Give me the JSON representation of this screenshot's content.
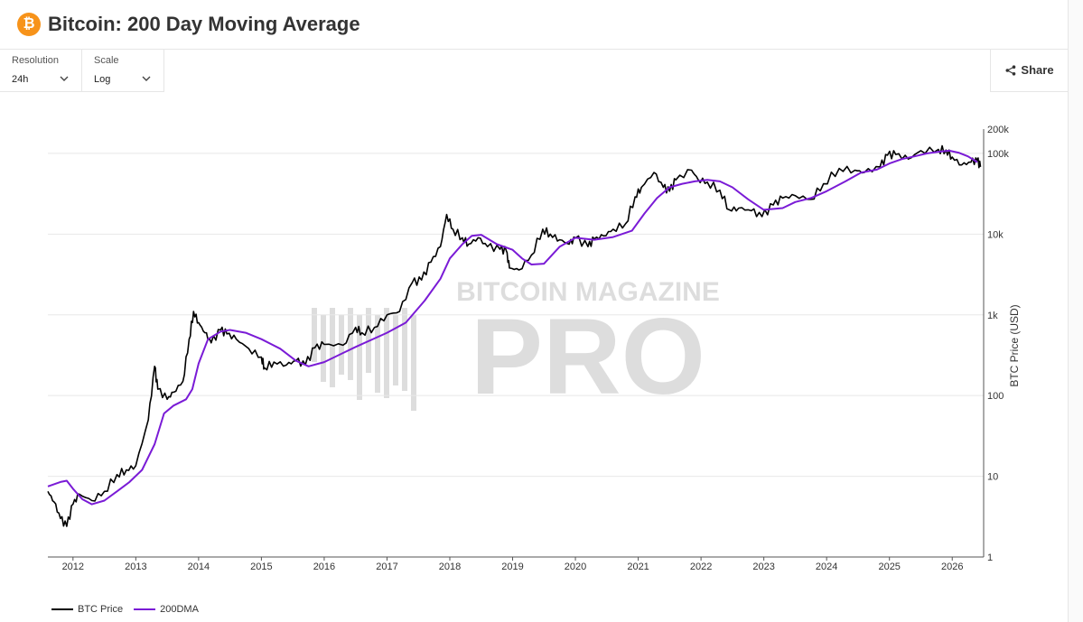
{
  "header": {
    "title": "Bitcoin: 200 Day Moving Average",
    "logo_glyph": "₿"
  },
  "controls": {
    "resolution": {
      "label": "Resolution",
      "value": "24h"
    },
    "scale": {
      "label": "Scale",
      "value": "Log"
    },
    "share_label": "Share"
  },
  "watermark": {
    "line1": "BITCOIN MAGAZINE",
    "line2": "PRO"
  },
  "colors": {
    "price": "#000000",
    "ma": "#7a1bd6",
    "brand": "#f7931a"
  },
  "chart_data": {
    "type": "line",
    "title": "",
    "xlabel": "",
    "ylabel": "BTC Price (USD)",
    "yscale": "log",
    "ylim": [
      1,
      200000
    ],
    "xlim": [
      2011.6,
      2026.5
    ],
    "y_ticks": [
      {
        "v": 1,
        "label": "1"
      },
      {
        "v": 10,
        "label": "10"
      },
      {
        "v": 100,
        "label": "100"
      },
      {
        "v": 1000,
        "label": "1k"
      },
      {
        "v": 10000,
        "label": "10k"
      },
      {
        "v": 100000,
        "label": "100k"
      },
      {
        "v": 200000,
        "label": "200k"
      }
    ],
    "x_ticks": [
      "2012",
      "2013",
      "2014",
      "2015",
      "2016",
      "2017",
      "2018",
      "2019",
      "2020",
      "2021",
      "2022",
      "2023",
      "2024",
      "2025",
      "2026"
    ],
    "legend_position": "bottom-left",
    "grid": true,
    "series": [
      {
        "name": "BTC Price",
        "x": [
          2011.6,
          2011.7,
          2011.8,
          2011.9,
          2012.0,
          2012.1,
          2012.3,
          2012.5,
          2012.7,
          2012.85,
          2013.0,
          2013.2,
          2013.3,
          2013.35,
          2013.5,
          2013.6,
          2013.75,
          2013.85,
          2013.92,
          2014.0,
          2014.1,
          2014.2,
          2014.35,
          2014.45,
          2014.6,
          2014.8,
          2015.0,
          2015.05,
          2015.2,
          2015.4,
          2015.55,
          2015.7,
          2015.85,
          2016.0,
          2016.3,
          2016.5,
          2016.6,
          2016.8,
          2017.0,
          2017.2,
          2017.4,
          2017.55,
          2017.7,
          2017.85,
          2017.95,
          2018.05,
          2018.2,
          2018.3,
          2018.45,
          2018.6,
          2018.8,
          2018.9,
          2018.95,
          2019.1,
          2019.3,
          2019.48,
          2019.6,
          2019.75,
          2019.9,
          2020.0,
          2020.2,
          2020.3,
          2020.45,
          2020.6,
          2020.8,
          2020.95,
          2021.05,
          2021.25,
          2021.4,
          2021.5,
          2021.6,
          2021.85,
          2021.95,
          2022.1,
          2022.3,
          2022.45,
          2022.6,
          2022.8,
          2022.97,
          2023.15,
          2023.3,
          2023.5,
          2023.75,
          2023.95,
          2024.2,
          2024.45,
          2024.6,
          2024.85,
          2024.97,
          2025.1,
          2025.3,
          2025.5,
          2025.78,
          2025.9,
          2026.0,
          2026.15,
          2026.3,
          2026.4,
          2026.45
        ],
        "values": [
          6.5,
          4.8,
          3.0,
          2.4,
          4.5,
          6.0,
          5.0,
          6.5,
          10.5,
          12.0,
          13.5,
          50,
          230,
          120,
          90,
          110,
          150,
          500,
          1100,
          800,
          600,
          450,
          650,
          580,
          500,
          380,
          300,
          220,
          260,
          240,
          270,
          240,
          390,
          430,
          420,
          700,
          600,
          700,
          1000,
          1100,
          2500,
          2700,
          4500,
          7000,
          17500,
          11500,
          9000,
          7500,
          9000,
          7000,
          6500,
          6200,
          3800,
          3600,
          5500,
          11500,
          10000,
          8500,
          7500,
          9000,
          7000,
          8700,
          9500,
          11500,
          13500,
          29000,
          38000,
          58000,
          38000,
          34000,
          47000,
          62000,
          48000,
          44000,
          35000,
          20000,
          21000,
          19500,
          16500,
          23000,
          28000,
          30000,
          27000,
          42000,
          65000,
          62000,
          58000,
          68000,
          95000,
          97000,
          85000,
          108000,
          112000,
          110000,
          90000,
          72000,
          78000,
          82000,
          68000
        ]
      },
      {
        "name": "200DMA",
        "x": [
          2011.6,
          2011.8,
          2011.9,
          2012.0,
          2012.15,
          2012.3,
          2012.5,
          2012.7,
          2012.9,
          2013.1,
          2013.3,
          2013.45,
          2013.6,
          2013.8,
          2013.9,
          2014.0,
          2014.15,
          2014.35,
          2014.5,
          2014.75,
          2015.0,
          2015.3,
          2015.55,
          2015.75,
          2016.0,
          2016.5,
          2017.0,
          2017.3,
          2017.6,
          2017.85,
          2018.0,
          2018.2,
          2018.35,
          2018.5,
          2018.75,
          2019.0,
          2019.15,
          2019.3,
          2019.5,
          2019.75,
          2020.0,
          2020.3,
          2020.6,
          2020.9,
          2021.1,
          2021.3,
          2021.5,
          2021.7,
          2021.9,
          2022.1,
          2022.3,
          2022.5,
          2022.75,
          2023.0,
          2023.3,
          2023.5,
          2023.75,
          2024.0,
          2024.3,
          2024.55,
          2024.8,
          2025.0,
          2025.2,
          2025.4,
          2025.6,
          2025.8,
          2025.95,
          2026.1,
          2026.25,
          2026.4
        ],
        "values": [
          7.5,
          8.5,
          8.8,
          7.0,
          5.2,
          4.5,
          5.0,
          6.5,
          8.5,
          12.0,
          25,
          60,
          75,
          90,
          120,
          250,
          500,
          620,
          650,
          600,
          500,
          380,
          270,
          230,
          260,
          400,
          600,
          800,
          1500,
          2800,
          5000,
          7500,
          9500,
          9800,
          7500,
          6400,
          5000,
          4200,
          4300,
          7000,
          9000,
          8500,
          9200,
          11000,
          18000,
          28000,
          38000,
          42000,
          45000,
          47000,
          45000,
          38000,
          27000,
          20000,
          21000,
          25000,
          28000,
          34000,
          45000,
          58000,
          63000,
          75000,
          85000,
          92000,
          100000,
          105000,
          108000,
          102000,
          92000,
          78000
        ]
      }
    ]
  },
  "legend": {
    "price_label": "BTC Price",
    "ma_label": "200DMA"
  }
}
